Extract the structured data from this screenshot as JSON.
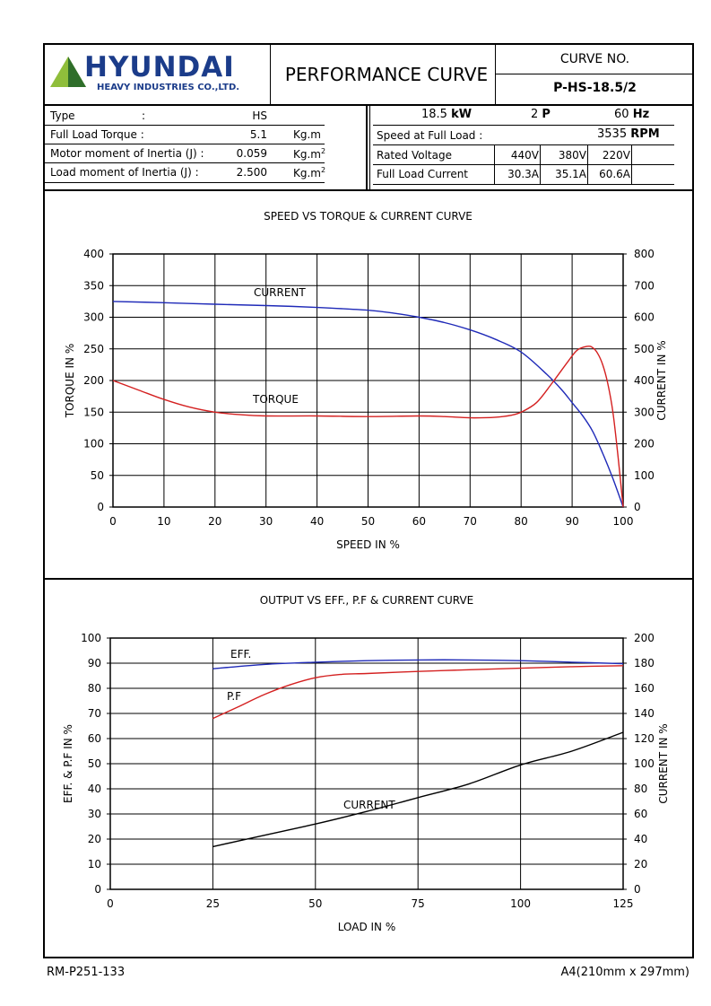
{
  "header": {
    "logo_text": "HYUNDAI",
    "logo_sub": "HEAVY INDUSTRIES CO.,LTD.",
    "title": "PERFORMANCE CURVE",
    "curve_no_label": "CURVE NO.",
    "curve_no": "P-HS-18.5/2",
    "brand_color": "#1b3c8a",
    "logo_triangle_colors": [
      "#8fbe3b",
      "#2f6e2a"
    ]
  },
  "specs_left": [
    {
      "label": "Type",
      "sep": ":",
      "value": "HS",
      "unit": ""
    },
    {
      "label": "Full Load Torque :",
      "sep": "",
      "value": "5.1",
      "unit": "Kg.m"
    },
    {
      "label": "Motor moment of Inertia (J) :",
      "sep": "",
      "value": "0.059",
      "unit": "Kg.m",
      "unit_sup": "2"
    },
    {
      "label": "Load moment of Inertia (J) :",
      "sep": "",
      "value": "2.500",
      "unit": "Kg.m",
      "unit_sup": "2"
    }
  ],
  "specs_right": {
    "power": "18.5",
    "power_unit": "kW",
    "poles": "2",
    "poles_unit": "P",
    "freq": "60",
    "freq_unit": "Hz",
    "speed_label": "Speed at Full Load :",
    "speed": "3535",
    "speed_unit": "RPM",
    "voltage_label": "Rated Voltage",
    "voltages": [
      "440V",
      "380V",
      "220V"
    ],
    "current_label": "Full Load Current",
    "currents": [
      "30.3A",
      "35.1A",
      "60.6A"
    ]
  },
  "chart_data": [
    {
      "type": "line",
      "title": "SPEED VS TORQUE & CURRENT CURVE",
      "xlabel": "SPEED IN %",
      "ylabel": "TORQUE IN %",
      "y2label": "CURRENT IN %",
      "xlim": [
        0,
        100
      ],
      "ylim": [
        0,
        400
      ],
      "y2lim": [
        0,
        800
      ],
      "xticks": [
        0,
        10,
        20,
        30,
        40,
        50,
        60,
        70,
        80,
        90,
        100
      ],
      "yticks": [
        0,
        50,
        100,
        150,
        200,
        250,
        300,
        350,
        400
      ],
      "y2ticks": [
        0,
        100,
        200,
        300,
        400,
        500,
        600,
        700,
        800
      ],
      "grid": true,
      "series": [
        {
          "name": "CURRENT",
          "axis": "y2",
          "color": "#1f2ab8",
          "x": [
            0,
            10,
            20,
            30,
            40,
            50,
            55,
            60,
            65,
            70,
            75,
            80,
            85,
            88,
            90,
            92,
            94,
            96,
            98,
            100
          ],
          "y": [
            650,
            646,
            641,
            637,
            631,
            622,
            613,
            600,
            583,
            560,
            530,
            490,
            420,
            370,
            330,
            290,
            240,
            170,
            90,
            0
          ]
        },
        {
          "name": "TORQUE",
          "axis": "y",
          "color": "#d42020",
          "x": [
            0,
            5,
            10,
            15,
            20,
            25,
            30,
            40,
            50,
            60,
            65,
            70,
            75,
            78,
            80,
            83,
            86,
            89,
            91,
            93,
            94,
            95,
            96,
            97,
            98,
            99,
            100
          ],
          "y": [
            200,
            185,
            170,
            158,
            150,
            146,
            144,
            144,
            143,
            144,
            143,
            141,
            142,
            145,
            150,
            165,
            195,
            228,
            248,
            254,
            252,
            243,
            225,
            195,
            150,
            80,
            0
          ]
        }
      ],
      "annotations": [
        {
          "text": "CURRENT"
        },
        {
          "text": "TORQUE"
        }
      ]
    },
    {
      "type": "line",
      "title": "OUTPUT VS EFF., P.F & CURRENT CURVE",
      "xlabel": "LOAD IN %",
      "ylabel": "EFF. & P.F IN %",
      "y2label": "CURRENT IN %",
      "xlim": [
        0,
        125
      ],
      "ylim": [
        0,
        100
      ],
      "y2lim": [
        0,
        200
      ],
      "xticks": [
        0,
        25,
        50,
        75,
        100,
        125
      ],
      "yticks": [
        0,
        10,
        20,
        30,
        40,
        50,
        60,
        70,
        80,
        90,
        100
      ],
      "y2ticks": [
        0,
        20,
        40,
        60,
        80,
        100,
        120,
        140,
        160,
        180,
        200
      ],
      "grid": true,
      "series": [
        {
          "name": "EFF.",
          "axis": "y",
          "color": "#1f2ab8",
          "x": [
            25,
            37.5,
            50,
            62.5,
            75,
            87.5,
            100,
            112.5,
            125
          ],
          "y": [
            87.8,
            89.5,
            90.4,
            91.0,
            91.3,
            91.3,
            91.0,
            90.4,
            89.8
          ]
        },
        {
          "name": "P.F",
          "axis": "y",
          "color": "#d42020",
          "x": [
            25,
            31,
            37.5,
            44,
            50,
            56,
            62.5,
            75,
            87.5,
            100,
            112.5,
            125
          ],
          "y": [
            68,
            72.5,
            77.5,
            81.5,
            84.2,
            85.5,
            85.9,
            86.7,
            87.4,
            88.0,
            88.6,
            89.0
          ]
        },
        {
          "name": "CURRENT",
          "axis": "y2",
          "color": "#000000",
          "x": [
            25,
            37.5,
            50,
            62.5,
            75,
            87.5,
            100,
            112.5,
            125
          ],
          "y": [
            34,
            43,
            52,
            62,
            73,
            84,
            99,
            110,
            125
          ]
        }
      ],
      "annotations": [
        {
          "text": "EFF."
        },
        {
          "text": "P.F"
        },
        {
          "text": "CURRENT"
        }
      ]
    }
  ],
  "footer": {
    "left": "RM-P251-133",
    "right": "A4(210mm x 297mm)"
  }
}
